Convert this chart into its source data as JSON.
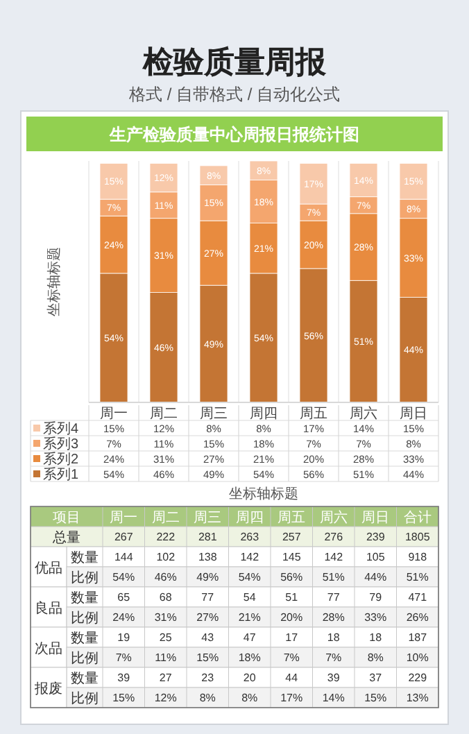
{
  "chart_data": [
    {
      "type": "bar",
      "stacked": true,
      "title": "生产检验质量中心周报日报统计图",
      "xlabel": "坐标轴标题",
      "ylabel": "坐标轴标题",
      "legend": "bottom",
      "annotations": [
        "检验质量周报",
        "格式 / 自带格式 / 自动化公式"
      ],
      "categories": [
        "周一",
        "周二",
        "周三",
        "周四",
        "周五",
        "周六",
        "周日"
      ],
      "series": [
        {
          "name": "系列1",
          "color": "#c47534",
          "values": [
            54,
            46,
            49,
            54,
            56,
            51,
            44
          ],
          "value_labels": [
            "54%",
            "46%",
            "49%",
            "54%",
            "56%",
            "51%",
            "44%"
          ]
        },
        {
          "name": "系列2",
          "color": "#e88b3f",
          "values": [
            24,
            31,
            27,
            21,
            20,
            28,
            33
          ],
          "value_labels": [
            "24%",
            "31%",
            "27%",
            "21%",
            "20%",
            "28%",
            "33%"
          ]
        },
        {
          "name": "系列3",
          "color": "#f4a66e",
          "values": [
            7,
            11,
            15,
            18,
            7,
            7,
            8
          ],
          "value_labels": [
            "7%",
            "11%",
            "15%",
            "18%",
            "7%",
            "7%",
            "8%"
          ]
        },
        {
          "name": "系列4",
          "color": "#f8c9aa",
          "values": [
            15,
            12,
            8,
            8,
            17,
            14,
            15
          ],
          "value_labels": [
            "15%",
            "12%",
            "8%",
            "8%",
            "17%",
            "14%",
            "15%"
          ]
        }
      ]
    },
    {
      "type": "other",
      "annotations": [
        "项目",
        "优品",
        "良品",
        "次品",
        "报废"
      ],
      "categories": [
        "周一",
        "周二",
        "周三",
        "周四",
        "周五",
        "周六",
        "周日",
        "合计"
      ],
      "y_categories": [
        "总量",
        "数量",
        "比例",
        "数量",
        "比例",
        "数量",
        "比例",
        "数量",
        "比例"
      ],
      "cell_labels": [
        [
          "267",
          "222",
          "281",
          "263",
          "257",
          "276",
          "239",
          "1805"
        ],
        [
          "144",
          "102",
          "138",
          "142",
          "145",
          "142",
          "105",
          "918"
        ],
        [
          "54%",
          "46%",
          "49%",
          "54%",
          "56%",
          "51%",
          "44%",
          "51%"
        ],
        [
          "65",
          "68",
          "77",
          "54",
          "51",
          "77",
          "79",
          "471"
        ],
        [
          "24%",
          "31%",
          "27%",
          "21%",
          "20%",
          "28%",
          "33%",
          "26%"
        ],
        [
          "19",
          "25",
          "43",
          "47",
          "17",
          "18",
          "18",
          "187"
        ],
        [
          "7%",
          "11%",
          "15%",
          "18%",
          "7%",
          "7%",
          "8%",
          "10%"
        ],
        [
          "39",
          "27",
          "23",
          "20",
          "44",
          "39",
          "37",
          "229"
        ],
        [
          "15%",
          "12%",
          "8%",
          "8%",
          "17%",
          "14%",
          "15%",
          "13%"
        ]
      ]
    }
  ]
}
